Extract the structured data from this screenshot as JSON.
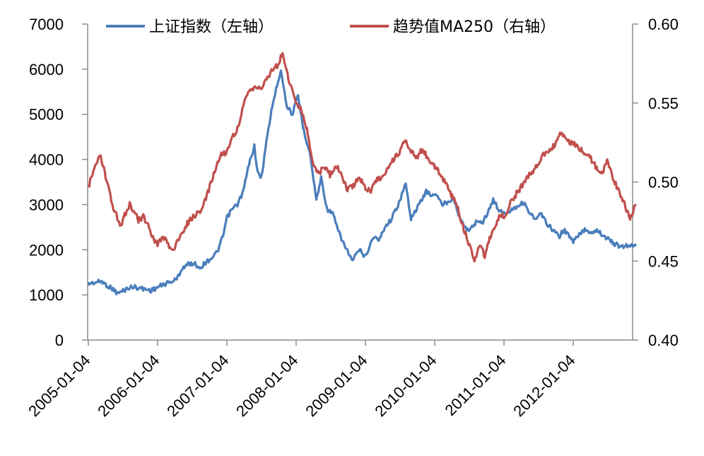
{
  "chart_data": {
    "type": "line",
    "title": "",
    "xlabel": "",
    "ylabel": "",
    "x_ticks": [
      "2005-01-04",
      "2006-01-04",
      "2007-01-04",
      "2008-01-04",
      "2009-01-04",
      "2010-01-04",
      "2011-01-04",
      "2012-01-04"
    ],
    "x_range": [
      "2005-01-04",
      "2012-11-30"
    ],
    "y_left": {
      "range": [
        0,
        7000
      ],
      "ticks": [
        "0",
        "1000",
        "2000",
        "3000",
        "4000",
        "5000",
        "6000",
        "7000"
      ]
    },
    "y_right": {
      "range": [
        0.4,
        0.6
      ],
      "ticks": [
        "0.40",
        "0.45",
        "0.50",
        "0.55",
        "0.60"
      ]
    },
    "grid": false,
    "legend_position": "top",
    "series": [
      {
        "name": "上证指数（左轴）",
        "axis": "left",
        "color": "#4a7ebb",
        "points": [
          [
            "2005-01-04",
            1250
          ],
          [
            "2005-02-15",
            1280
          ],
          [
            "2005-03-15",
            1300
          ],
          [
            "2005-04-15",
            1200
          ],
          [
            "2005-05-15",
            1130
          ],
          [
            "2005-06-06",
            1030
          ],
          [
            "2005-07-01",
            1080
          ],
          [
            "2005-08-01",
            1150
          ],
          [
            "2005-09-01",
            1180
          ],
          [
            "2005-10-15",
            1140
          ],
          [
            "2005-12-01",
            1100
          ],
          [
            "2006-01-04",
            1170
          ],
          [
            "2006-02-15",
            1250
          ],
          [
            "2006-03-15",
            1290
          ],
          [
            "2006-04-15",
            1350
          ],
          [
            "2006-05-15",
            1600
          ],
          [
            "2006-06-15",
            1680
          ],
          [
            "2006-07-15",
            1700
          ],
          [
            "2006-08-15",
            1600
          ],
          [
            "2006-09-15",
            1720
          ],
          [
            "2006-10-15",
            1820
          ],
          [
            "2006-11-15",
            1950
          ],
          [
            "2006-12-15",
            2300
          ],
          [
            "2007-01-04",
            2700
          ],
          [
            "2007-02-01",
            2900
          ],
          [
            "2007-03-01",
            3000
          ],
          [
            "2007-04-01",
            3300
          ],
          [
            "2007-05-01",
            3900
          ],
          [
            "2007-05-29",
            4300
          ],
          [
            "2007-06-15",
            3700
          ],
          [
            "2007-07-05",
            3600
          ],
          [
            "2007-08-01",
            4400
          ],
          [
            "2007-09-01",
            5200
          ],
          [
            "2007-10-16",
            6000
          ],
          [
            "2007-11-15",
            5200
          ],
          [
            "2007-12-15",
            5000
          ],
          [
            "2008-01-14",
            5400
          ],
          [
            "2008-02-15",
            4600
          ],
          [
            "2008-03-15",
            4200
          ],
          [
            "2008-04-20",
            3100
          ],
          [
            "2008-05-15",
            3600
          ],
          [
            "2008-06-15",
            2900
          ],
          [
            "2008-07-15",
            2800
          ],
          [
            "2008-08-15",
            2400
          ],
          [
            "2008-09-15",
            2100
          ],
          [
            "2008-10-28",
            1750
          ],
          [
            "2008-12-01",
            2000
          ],
          [
            "2009-01-04",
            1850
          ],
          [
            "2009-02-15",
            2300
          ],
          [
            "2009-03-15",
            2200
          ],
          [
            "2009-04-15",
            2500
          ],
          [
            "2009-05-15",
            2650
          ],
          [
            "2009-06-15",
            2900
          ],
          [
            "2009-08-04",
            3450
          ],
          [
            "2009-09-01",
            2700
          ],
          [
            "2009-10-01",
            2900
          ],
          [
            "2009-11-20",
            3300
          ],
          [
            "2009-12-15",
            3200
          ],
          [
            "2010-01-04",
            3250
          ],
          [
            "2010-02-15",
            3000
          ],
          [
            "2010-04-15",
            3150
          ],
          [
            "2010-05-15",
            2700
          ],
          [
            "2010-07-02",
            2400
          ],
          [
            "2010-08-15",
            2650
          ],
          [
            "2010-09-15",
            2600
          ],
          [
            "2010-11-08",
            3100
          ],
          [
            "2010-12-15",
            2850
          ],
          [
            "2011-01-04",
            2800
          ],
          [
            "2011-02-15",
            2900
          ],
          [
            "2011-04-18",
            3050
          ],
          [
            "2011-05-15",
            2850
          ],
          [
            "2011-06-20",
            2650
          ],
          [
            "2011-07-15",
            2800
          ],
          [
            "2011-08-15",
            2600
          ],
          [
            "2011-09-15",
            2450
          ],
          [
            "2011-10-24",
            2300
          ],
          [
            "2011-11-15",
            2450
          ],
          [
            "2012-01-04",
            2180
          ],
          [
            "2012-02-15",
            2380
          ],
          [
            "2012-03-05",
            2450
          ],
          [
            "2012-04-15",
            2380
          ],
          [
            "2012-05-07",
            2450
          ],
          [
            "2012-06-15",
            2300
          ],
          [
            "2012-07-15",
            2200
          ],
          [
            "2012-08-15",
            2120
          ],
          [
            "2012-09-15",
            2050
          ],
          [
            "2012-10-15",
            2100
          ],
          [
            "2012-11-30",
            2080
          ]
        ]
      },
      {
        "name": "趋势值MA250（右轴）",
        "axis": "right",
        "color": "#c0504d",
        "points": [
          [
            "2005-01-04",
            0.497
          ],
          [
            "2005-01-25",
            0.505
          ],
          [
            "2005-02-15",
            0.511
          ],
          [
            "2005-03-10",
            0.517
          ],
          [
            "2005-04-01",
            0.505
          ],
          [
            "2005-04-20",
            0.496
          ],
          [
            "2005-05-10",
            0.485
          ],
          [
            "2005-06-01",
            0.479
          ],
          [
            "2005-06-20",
            0.471
          ],
          [
            "2005-07-15",
            0.479
          ],
          [
            "2005-08-10",
            0.486
          ],
          [
            "2005-09-01",
            0.481
          ],
          [
            "2005-09-25",
            0.476
          ],
          [
            "2005-10-20",
            0.478
          ],
          [
            "2005-11-15",
            0.473
          ],
          [
            "2005-12-10",
            0.465
          ],
          [
            "2006-01-04",
            0.461
          ],
          [
            "2006-02-01",
            0.466
          ],
          [
            "2006-03-01",
            0.46
          ],
          [
            "2006-03-25",
            0.457
          ],
          [
            "2006-04-20",
            0.462
          ],
          [
            "2006-05-15",
            0.468
          ],
          [
            "2006-06-10",
            0.474
          ],
          [
            "2006-07-05",
            0.477
          ],
          [
            "2006-08-01",
            0.48
          ],
          [
            "2006-09-01",
            0.484
          ],
          [
            "2006-10-01",
            0.495
          ],
          [
            "2006-11-01",
            0.507
          ],
          [
            "2006-12-01",
            0.517
          ],
          [
            "2007-01-04",
            0.519
          ],
          [
            "2007-02-01",
            0.528
          ],
          [
            "2007-03-01",
            0.534
          ],
          [
            "2007-04-01",
            0.548
          ],
          [
            "2007-05-01",
            0.557
          ],
          [
            "2007-06-01",
            0.561
          ],
          [
            "2007-07-01",
            0.558
          ],
          [
            "2007-08-01",
            0.566
          ],
          [
            "2007-09-01",
            0.571
          ],
          [
            "2007-10-01",
            0.574
          ],
          [
            "2007-10-25",
            0.582
          ],
          [
            "2007-11-20",
            0.568
          ],
          [
            "2007-12-15",
            0.557
          ],
          [
            "2008-01-04",
            0.551
          ],
          [
            "2008-02-01",
            0.546
          ],
          [
            "2008-03-01",
            0.533
          ],
          [
            "2008-04-01",
            0.512
          ],
          [
            "2008-05-01",
            0.505
          ],
          [
            "2008-06-01",
            0.51
          ],
          [
            "2008-07-01",
            0.504
          ],
          [
            "2008-08-01",
            0.511
          ],
          [
            "2008-09-01",
            0.503
          ],
          [
            "2008-10-01",
            0.495
          ],
          [
            "2008-11-01",
            0.498
          ],
          [
            "2008-12-01",
            0.503
          ],
          [
            "2009-01-04",
            0.497
          ],
          [
            "2009-02-01",
            0.494
          ],
          [
            "2009-03-01",
            0.501
          ],
          [
            "2009-04-01",
            0.503
          ],
          [
            "2009-05-01",
            0.509
          ],
          [
            "2009-06-01",
            0.514
          ],
          [
            "2009-07-01",
            0.519
          ],
          [
            "2009-08-01",
            0.527
          ],
          [
            "2009-09-01",
            0.52
          ],
          [
            "2009-10-01",
            0.516
          ],
          [
            "2009-11-01",
            0.521
          ],
          [
            "2009-12-01",
            0.514
          ],
          [
            "2010-01-04",
            0.51
          ],
          [
            "2010-02-01",
            0.505
          ],
          [
            "2010-03-01",
            0.5
          ],
          [
            "2010-04-01",
            0.492
          ],
          [
            "2010-05-01",
            0.485
          ],
          [
            "2010-06-01",
            0.472
          ],
          [
            "2010-07-01",
            0.462
          ],
          [
            "2010-08-01",
            0.451
          ],
          [
            "2010-09-01",
            0.461
          ],
          [
            "2010-09-25",
            0.453
          ],
          [
            "2010-10-20",
            0.464
          ],
          [
            "2010-11-15",
            0.471
          ],
          [
            "2010-12-15",
            0.479
          ],
          [
            "2011-01-04",
            0.478
          ],
          [
            "2011-02-01",
            0.485
          ],
          [
            "2011-03-01",
            0.491
          ],
          [
            "2011-04-01",
            0.496
          ],
          [
            "2011-05-01",
            0.503
          ],
          [
            "2011-06-01",
            0.506
          ],
          [
            "2011-07-01",
            0.512
          ],
          [
            "2011-08-01",
            0.517
          ],
          [
            "2011-09-01",
            0.521
          ],
          [
            "2011-10-01",
            0.524
          ],
          [
            "2011-11-01",
            0.531
          ],
          [
            "2011-12-01",
            0.526
          ],
          [
            "2012-01-04",
            0.525
          ],
          [
            "2012-02-01",
            0.522
          ],
          [
            "2012-03-01",
            0.519
          ],
          [
            "2012-04-01",
            0.516
          ],
          [
            "2012-05-01",
            0.51
          ],
          [
            "2012-06-01",
            0.505
          ],
          [
            "2012-07-01",
            0.514
          ],
          [
            "2012-07-25",
            0.505
          ],
          [
            "2012-08-20",
            0.497
          ],
          [
            "2012-09-15",
            0.49
          ],
          [
            "2012-10-10",
            0.483
          ],
          [
            "2012-10-30",
            0.477
          ],
          [
            "2012-11-15",
            0.482
          ],
          [
            "2012-11-30",
            0.486
          ]
        ]
      }
    ]
  }
}
